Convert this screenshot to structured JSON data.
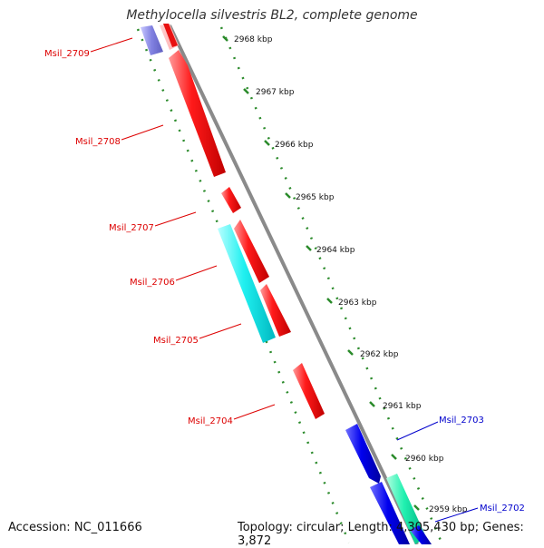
{
  "title": "Methylocella silvestris BL2, complete genome",
  "footer": {
    "accession": "Accession: NC_011666",
    "summary": "Topology: circular; Length: 4,305,430 bp; Genes: 3,872"
  },
  "colors": {
    "backbone": "#8a8a8a",
    "ticks": "#2a8a2a",
    "label_forward": "#dd0000",
    "label_reverse": "#0000cc"
  },
  "ticks": [
    {
      "label": "2968 kbp"
    },
    {
      "label": "2967 kbp"
    },
    {
      "label": "2966 kbp"
    },
    {
      "label": "2965 kbp"
    },
    {
      "label": "2964 kbp"
    },
    {
      "label": "2963 kbp"
    },
    {
      "label": "2962 kbp"
    },
    {
      "label": "2961 kbp"
    },
    {
      "label": "2960 kbp"
    },
    {
      "label": "2959 kbp"
    }
  ],
  "genes": [
    {
      "label": "Msil_2709",
      "color": "#dd0000"
    },
    {
      "label": "Msil_2708",
      "color": "#dd0000"
    },
    {
      "label": "Msil_2707",
      "color": "#dd0000"
    },
    {
      "label": "Msil_2706",
      "color": "#dd0000"
    },
    {
      "label": "Msil_2705",
      "color": "#dd0000"
    },
    {
      "label": "Msil_2704",
      "color": "#dd0000"
    },
    {
      "label": "Msil_2703",
      "color": "#0000cc"
    },
    {
      "label": "Msil_2702",
      "color": "#0000cc"
    }
  ]
}
